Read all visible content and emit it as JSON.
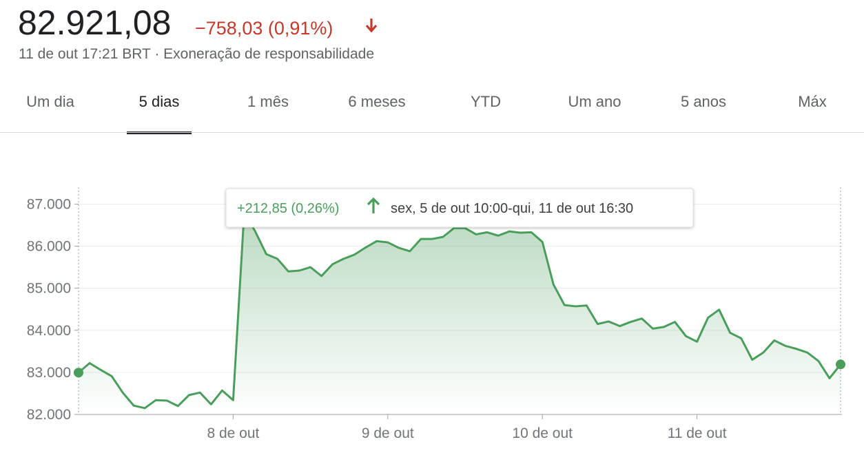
{
  "header": {
    "price": "82.921,08",
    "change": "−758,03 (0,91%)",
    "timestamp": "11 de out 17:21 BRT · Exoneração de responsabilidade"
  },
  "tabs": [
    "Um dia",
    "5 dias",
    "1 mês",
    "6 meses",
    "YTD",
    "Um ano",
    "5 anos",
    "Máx"
  ],
  "selected_tab": 1,
  "chart_data": {
    "type": "line",
    "tooltip": {
      "change": "+212,85 (0,26%)",
      "range": "sex, 5 de out 10:00-qui, 11 de out 16:30"
    },
    "categories": [
      null,
      null,
      null,
      null,
      null,
      null,
      null,
      null,
      null,
      null,
      null,
      null,
      null,
      null,
      "8 de out",
      null,
      null,
      null,
      null,
      null,
      null,
      null,
      null,
      null,
      null,
      null,
      null,
      null,
      "9 de out",
      null,
      null,
      null,
      null,
      null,
      null,
      null,
      null,
      null,
      null,
      null,
      null,
      null,
      "10 de out",
      null,
      null,
      null,
      null,
      null,
      null,
      null,
      null,
      null,
      null,
      null,
      null,
      null,
      "11 de out",
      null,
      null,
      null,
      null,
      null,
      null,
      null,
      null,
      null,
      null,
      null,
      null,
      null
    ],
    "values": [
      82994,
      83220,
      83060,
      82910,
      82520,
      82210,
      82150,
      82340,
      82330,
      82200,
      82460,
      82520,
      82240,
      82570,
      82340,
      86800,
      86350,
      85810,
      85700,
      85400,
      85420,
      85500,
      85290,
      85570,
      85700,
      85800,
      85970,
      86120,
      86090,
      85960,
      85880,
      86170,
      86170,
      86220,
      86430,
      86430,
      86280,
      86330,
      86250,
      86350,
      86320,
      86330,
      86100,
      85090,
      84600,
      84570,
      84590,
      84150,
      84210,
      84100,
      84200,
      84280,
      84040,
      84080,
      84200,
      83860,
      83730,
      84300,
      84490,
      83940,
      83810,
      83300,
      83470,
      83760,
      83630,
      83560,
      83470,
      83270,
      82860,
      83190
    ],
    "color": "#4a9e5c",
    "ylim": [
      82000,
      87400
    ],
    "yticks": [
      {
        "value": 82000,
        "label": "82.000"
      },
      {
        "value": 83000,
        "label": "83.000"
      },
      {
        "value": 84000,
        "label": "84.000"
      },
      {
        "value": 85000,
        "label": "85.000"
      },
      {
        "value": 86000,
        "label": "86.000"
      },
      {
        "value": 87000,
        "label": "87.000"
      }
    ],
    "grid": true
  }
}
